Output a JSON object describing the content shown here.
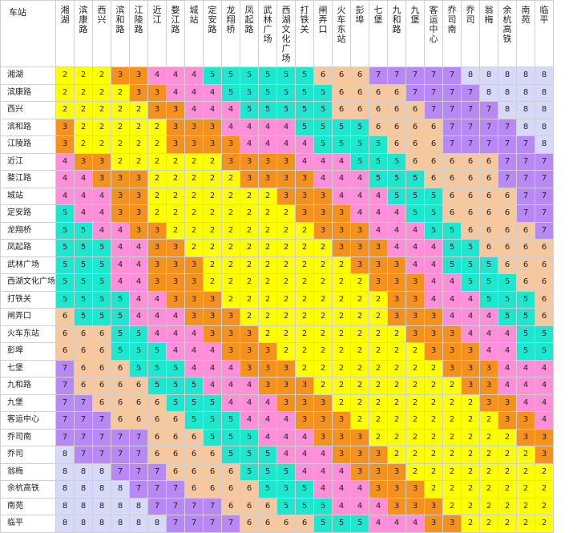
{
  "corner_label": "车站",
  "stations": [
    "湘湖",
    "滨康路",
    "西兴",
    "滨和路",
    "江陵路",
    "近江",
    "婺江路",
    "城站",
    "定安路",
    "龙翔桥",
    "凤起路",
    "武林广场",
    "西湖文化广场",
    "打铁关",
    "闸弄口",
    "火车东站",
    "彭埠",
    "七堡",
    "九和路",
    "九堡",
    "客运中心",
    "乔司南",
    "乔司",
    "翁梅",
    "余杭高铁",
    "南苑",
    "临平"
  ],
  "colors": {
    "2": "#ffff00",
    "3": "#f5921e",
    "4": "#ff8fd8",
    "5": "#1ee6cf",
    "6": "#f5c8a0",
    "7": "#b888f5",
    "8": "#d8d8fa",
    "header_bg": "#ffffff",
    "grid": "#cfcfcf"
  },
  "matrix": [
    [
      2,
      2,
      2,
      3,
      3,
      4,
      4,
      4,
      5,
      5,
      5,
      5,
      5,
      5,
      6,
      6,
      6,
      7,
      7,
      7,
      7,
      7,
      8,
      8,
      8,
      8,
      8
    ],
    [
      2,
      2,
      2,
      2,
      3,
      3,
      4,
      4,
      4,
      5,
      5,
      5,
      5,
      5,
      5,
      6,
      6,
      6,
      6,
      7,
      7,
      7,
      7,
      8,
      8,
      8,
      8
    ],
    [
      2,
      2,
      2,
      2,
      2,
      3,
      3,
      4,
      4,
      4,
      5,
      5,
      5,
      5,
      5,
      6,
      6,
      6,
      6,
      6,
      7,
      7,
      7,
      7,
      8,
      8,
      8
    ],
    [
      3,
      2,
      2,
      2,
      2,
      2,
      3,
      3,
      3,
      4,
      4,
      4,
      4,
      5,
      5,
      5,
      5,
      6,
      6,
      6,
      6,
      7,
      7,
      7,
      7,
      8,
      8
    ],
    [
      3,
      2,
      2,
      2,
      2,
      2,
      3,
      3,
      3,
      3,
      4,
      4,
      4,
      4,
      5,
      5,
      5,
      5,
      6,
      6,
      6,
      7,
      7,
      7,
      7,
      7,
      8
    ],
    [
      4,
      3,
      3,
      2,
      2,
      2,
      2,
      2,
      2,
      3,
      3,
      3,
      3,
      4,
      4,
      4,
      5,
      5,
      5,
      6,
      6,
      6,
      6,
      6,
      7,
      7,
      7
    ],
    [
      4,
      4,
      3,
      3,
      3,
      2,
      2,
      2,
      2,
      2,
      3,
      3,
      3,
      3,
      4,
      4,
      4,
      5,
      5,
      5,
      6,
      6,
      6,
      6,
      7,
      7,
      7
    ],
    [
      4,
      4,
      4,
      3,
      3,
      2,
      2,
      2,
      2,
      2,
      2,
      2,
      3,
      3,
      3,
      4,
      4,
      4,
      5,
      5,
      5,
      6,
      6,
      6,
      6,
      7,
      7
    ],
    [
      5,
      4,
      4,
      3,
      3,
      2,
      2,
      2,
      2,
      2,
      2,
      2,
      2,
      3,
      3,
      3,
      4,
      4,
      4,
      5,
      5,
      6,
      6,
      6,
      6,
      7,
      7
    ],
    [
      5,
      5,
      4,
      4,
      3,
      3,
      2,
      2,
      2,
      2,
      2,
      2,
      2,
      2,
      3,
      3,
      3,
      4,
      4,
      4,
      5,
      5,
      6,
      6,
      6,
      6,
      7
    ],
    [
      5,
      5,
      5,
      4,
      4,
      3,
      3,
      2,
      2,
      2,
      2,
      2,
      2,
      2,
      2,
      3,
      3,
      3,
      4,
      4,
      4,
      5,
      5,
      6,
      6,
      6,
      6
    ],
    [
      5,
      5,
      5,
      4,
      4,
      3,
      3,
      3,
      2,
      2,
      2,
      2,
      2,
      2,
      2,
      2,
      3,
      3,
      3,
      4,
      4,
      5,
      5,
      5,
      6,
      6,
      6
    ],
    [
      5,
      5,
      5,
      4,
      4,
      3,
      3,
      3,
      2,
      2,
      2,
      2,
      2,
      2,
      2,
      2,
      2,
      3,
      3,
      3,
      4,
      4,
      5,
      5,
      5,
      6,
      6
    ],
    [
      5,
      5,
      5,
      5,
      4,
      4,
      3,
      3,
      3,
      2,
      2,
      2,
      2,
      2,
      2,
      2,
      2,
      2,
      3,
      3,
      4,
      4,
      4,
      5,
      5,
      5,
      6
    ],
    [
      6,
      5,
      5,
      5,
      4,
      4,
      4,
      3,
      3,
      3,
      2,
      2,
      2,
      2,
      2,
      2,
      2,
      2,
      3,
      3,
      3,
      4,
      4,
      4,
      5,
      5,
      6
    ],
    [
      6,
      6,
      6,
      5,
      5,
      4,
      4,
      4,
      3,
      3,
      3,
      2,
      2,
      2,
      2,
      2,
      2,
      2,
      2,
      3,
      3,
      3,
      4,
      4,
      4,
      5,
      5
    ],
    [
      6,
      6,
      6,
      5,
      5,
      5,
      4,
      4,
      4,
      3,
      3,
      3,
      2,
      2,
      2,
      2,
      2,
      2,
      2,
      2,
      3,
      3,
      3,
      4,
      4,
      5,
      5
    ],
    [
      7,
      6,
      6,
      6,
      5,
      5,
      5,
      4,
      4,
      4,
      3,
      3,
      3,
      2,
      2,
      2,
      2,
      2,
      2,
      2,
      2,
      3,
      3,
      3,
      4,
      4,
      4
    ],
    [
      7,
      6,
      6,
      6,
      6,
      5,
      5,
      5,
      4,
      4,
      4,
      3,
      3,
      3,
      2,
      2,
      2,
      2,
      2,
      2,
      2,
      2,
      3,
      3,
      4,
      4,
      4
    ],
    [
      7,
      7,
      6,
      6,
      6,
      6,
      5,
      5,
      5,
      4,
      4,
      4,
      3,
      3,
      3,
      2,
      2,
      2,
      2,
      2,
      2,
      2,
      2,
      3,
      3,
      4,
      4
    ],
    [
      7,
      7,
      7,
      6,
      6,
      6,
      6,
      5,
      5,
      5,
      4,
      4,
      4,
      3,
      3,
      3,
      2,
      2,
      2,
      2,
      2,
      2,
      2,
      2,
      3,
      3,
      4
    ],
    [
      7,
      7,
      7,
      7,
      7,
      6,
      6,
      6,
      5,
      5,
      5,
      4,
      4,
      4,
      3,
      3,
      3,
      2,
      2,
      2,
      2,
      2,
      2,
      2,
      2,
      3,
      3
    ],
    [
      8,
      7,
      7,
      7,
      7,
      6,
      6,
      6,
      6,
      5,
      5,
      5,
      4,
      4,
      4,
      3,
      3,
      3,
      2,
      2,
      2,
      2,
      2,
      2,
      2,
      2,
      3
    ],
    [
      8,
      8,
      8,
      7,
      7,
      7,
      6,
      6,
      6,
      6,
      5,
      5,
      5,
      4,
      4,
      4,
      3,
      3,
      3,
      2,
      2,
      2,
      2,
      2,
      2,
      2,
      2
    ],
    [
      8,
      8,
      8,
      8,
      7,
      7,
      7,
      6,
      6,
      6,
      6,
      5,
      5,
      5,
      4,
      4,
      4,
      3,
      3,
      3,
      2,
      2,
      2,
      2,
      2,
      2,
      2
    ],
    [
      8,
      8,
      8,
      8,
      8,
      7,
      7,
      7,
      7,
      6,
      6,
      6,
      5,
      5,
      5,
      4,
      4,
      4,
      3,
      3,
      3,
      2,
      2,
      2,
      2,
      2,
      2
    ],
    [
      8,
      8,
      8,
      8,
      8,
      8,
      7,
      7,
      7,
      7,
      6,
      6,
      6,
      6,
      5,
      5,
      5,
      4,
      4,
      4,
      3,
      3,
      2,
      2,
      2,
      2,
      2
    ]
  ]
}
